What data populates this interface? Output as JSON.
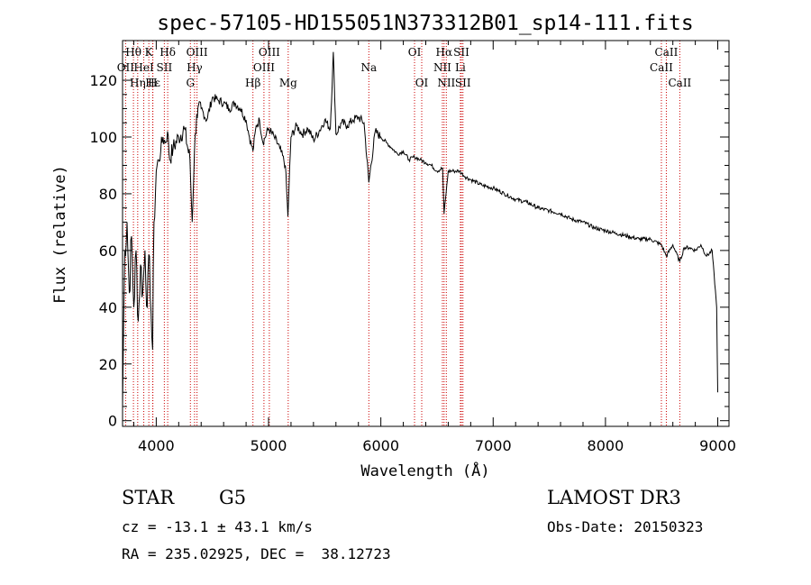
{
  "chart_data": {
    "type": "line",
    "title": "spec-57105-HD155051N373312B01_sp14-111.fits",
    "xlabel": "Wavelength (Å)",
    "ylabel": "Flux (relative)",
    "xlim": [
      3700,
      9100
    ],
    "ylim": [
      -2,
      134
    ],
    "x_ticks": [
      4000,
      5000,
      6000,
      7000,
      8000,
      9000
    ],
    "y_ticks": [
      0,
      20,
      40,
      60,
      80,
      100,
      120
    ],
    "x_tick_labels": [
      "4000",
      "5000",
      "6000",
      "7000",
      "8000",
      "9000"
    ],
    "y_tick_labels": [
      "0",
      "20",
      "40",
      "60",
      "80",
      "100",
      "120"
    ],
    "series": [
      {
        "name": "flux",
        "x": [
          3700,
          3710,
          3720,
          3740,
          3760,
          3780,
          3800,
          3820,
          3840,
          3860,
          3880,
          3900,
          3920,
          3940,
          3960,
          3968,
          3980,
          4000,
          4020,
          4040,
          4060,
          4080,
          4100,
          4120,
          4150,
          4200,
          4250,
          4300,
          4320,
          4340,
          4360,
          4400,
          4450,
          4500,
          4550,
          4600,
          4650,
          4700,
          4750,
          4800,
          4830,
          4861,
          4890,
          4920,
          4950,
          5000,
          5050,
          5100,
          5150,
          5172,
          5200,
          5250,
          5300,
          5350,
          5400,
          5450,
          5500,
          5550,
          5577,
          5600,
          5650,
          5700,
          5750,
          5800,
          5850,
          5893,
          5950,
          6000,
          6050,
          6100,
          6150,
          6200,
          6250,
          6300,
          6350,
          6400,
          6450,
          6500,
          6550,
          6563,
          6600,
          6650,
          6700,
          6750,
          6800,
          6900,
          7000,
          7100,
          7200,
          7300,
          7400,
          7500,
          7600,
          7700,
          7800,
          7900,
          8000,
          8100,
          8200,
          8300,
          8400,
          8498,
          8542,
          8600,
          8662,
          8700,
          8750,
          8800,
          8850,
          8900,
          8950,
          8990,
          9000
        ],
        "y": [
          5,
          35,
          60,
          70,
          45,
          65,
          40,
          60,
          35,
          55,
          45,
          60,
          40,
          58,
          30,
          25,
          70,
          88,
          92,
          95,
          100,
          98,
          102,
          92,
          96,
          100,
          103,
          92,
          70,
          95,
          108,
          110,
          106,
          114,
          113,
          112,
          110,
          112,
          110,
          106,
          100,
          95,
          104,
          106,
          98,
          103,
          100,
          96,
          90,
          72,
          100,
          104,
          101,
          103,
          99,
          102,
          106,
          103,
          130,
          101,
          105,
          104,
          106,
          107,
          105,
          84,
          102,
          100,
          98,
          96,
          94,
          95,
          92,
          93,
          92,
          91,
          90,
          88,
          89,
          73,
          88,
          88,
          88,
          86,
          85,
          83,
          82,
          80,
          78,
          77,
          75,
          74,
          73,
          71,
          70,
          68,
          67,
          66,
          65,
          64,
          64,
          62,
          58,
          62,
          56,
          61,
          61,
          60,
          62,
          58,
          60,
          40,
          10
        ]
      }
    ],
    "line_labels": [
      {
        "label": "Hθ",
        "x": 3797,
        "row": 1
      },
      {
        "label": "OII",
        "x": 3727,
        "row": 2
      },
      {
        "label": "Hη",
        "x": 3835,
        "row": 3
      },
      {
        "label": "K",
        "x": 3934,
        "row": 1
      },
      {
        "label": "HeI",
        "x": 3889,
        "row": 2
      },
      {
        "label": "Hε",
        "x": 3970,
        "row": 3
      },
      {
        "label": "Hδ",
        "x": 4102,
        "row": 1
      },
      {
        "label": "SII",
        "x": 4072,
        "row": 2
      },
      {
        "label": "H",
        "x": 3968,
        "row": 3
      },
      {
        "label": "OIII",
        "x": 4363,
        "row": 1
      },
      {
        "label": "Hγ",
        "x": 4341,
        "row": 2
      },
      {
        "label": "G",
        "x": 4304,
        "row": 3
      },
      {
        "label": "OIII",
        "x": 5007,
        "row": 1
      },
      {
        "label": "OIII",
        "x": 4959,
        "row": 2
      },
      {
        "label": "Hβ",
        "x": 4861,
        "row": 3
      },
      {
        "label": "Mg",
        "x": 5175,
        "row": 3
      },
      {
        "label": "Na",
        "x": 5893,
        "row": 2
      },
      {
        "label": "OI",
        "x": 6300,
        "row": 1
      },
      {
        "label": "OI",
        "x": 6364,
        "row": 3
      },
      {
        "label": "Hα",
        "x": 6563,
        "row": 1
      },
      {
        "label": "NII",
        "x": 6548,
        "row": 2
      },
      {
        "label": "NII",
        "x": 6583,
        "row": 3
      },
      {
        "label": "SII",
        "x": 6717,
        "row": 1
      },
      {
        "label": "Li",
        "x": 6708,
        "row": 2
      },
      {
        "label": "SII",
        "x": 6731,
        "row": 3
      },
      {
        "label": "CaII",
        "x": 8542,
        "row": 1
      },
      {
        "label": "CaII",
        "x": 8498,
        "row": 2
      },
      {
        "label": "CaII",
        "x": 8662,
        "row": 3
      }
    ],
    "marker_lines": [
      3727,
      3797,
      3835,
      3889,
      3934,
      3968,
      3970,
      4072,
      4102,
      4304,
      4341,
      4363,
      4861,
      4959,
      5007,
      5175,
      5893,
      6300,
      6364,
      6548,
      6563,
      6583,
      6708,
      6717,
      6731,
      8498,
      8542,
      8662
    ],
    "marker_color": "#cc0000",
    "line_color": "#000000"
  },
  "info": {
    "object_class": "STAR",
    "subclass": "G5",
    "survey": "LAMOST DR3",
    "redshift": "cz = -13.1 ± 43.1 km/s",
    "obs_date": "Obs-Date: 20150323",
    "coords": "RA = 235.02925, DEC =  38.12723"
  }
}
